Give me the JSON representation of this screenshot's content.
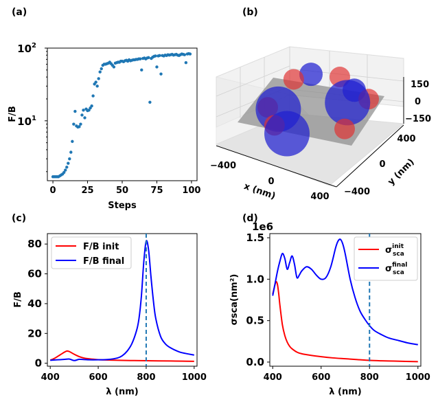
{
  "panels": {
    "a": "(a)",
    "b": "(b)",
    "c": "(c)",
    "d": "(d)"
  },
  "colors": {
    "scatter": "#1f77b4",
    "init": "#ff0000",
    "final": "#0000ff",
    "vline": "#1f77b4",
    "sphere_red": "#e03030",
    "sphere_blue": "#2020d0",
    "plane": "#8a8a8a"
  },
  "chart_data": [
    {
      "id": "a",
      "type": "scatter",
      "title": "",
      "xlabel": "Steps",
      "ylabel": "F/B",
      "yscale": "log",
      "xlim": [
        -4,
        104
      ],
      "ylim": [
        1.5,
        100
      ],
      "xticks": [
        0,
        25,
        50,
        75,
        100
      ],
      "xtick_labels": [
        "0",
        "25",
        "50",
        "75",
        "100"
      ],
      "yticks": [
        10,
        100
      ],
      "ytick_labels": [
        "10¹",
        "10²"
      ],
      "x": [
        0,
        1,
        2,
        3,
        4,
        5,
        6,
        7,
        8,
        9,
        10,
        11,
        12,
        13,
        14,
        15,
        16,
        17,
        18,
        19,
        20,
        21,
        22,
        23,
        24,
        25,
        26,
        27,
        28,
        29,
        30,
        31,
        32,
        33,
        34,
        35,
        36,
        37,
        38,
        39,
        40,
        41,
        42,
        43,
        44,
        45,
        46,
        47,
        48,
        49,
        50,
        51,
        52,
        53,
        54,
        55,
        56,
        57,
        58,
        59,
        60,
        61,
        62,
        63,
        64,
        65,
        66,
        67,
        68,
        69,
        70,
        71,
        72,
        73,
        74,
        75,
        76,
        77,
        78,
        79,
        80,
        81,
        82,
        83,
        84,
        85,
        86,
        87,
        88,
        89,
        90,
        91,
        92,
        93,
        94,
        95,
        96,
        97,
        98,
        99
      ],
      "y": [
        1.7,
        1.7,
        1.7,
        1.7,
        1.7,
        1.75,
        1.8,
        1.85,
        1.95,
        2.1,
        2.3,
        2.6,
        3.0,
        3.7,
        5.2,
        9.0,
        13.5,
        8.5,
        8.2,
        8.3,
        9.0,
        12.0,
        14.0,
        11.0,
        14.5,
        13.8,
        14.0,
        15.0,
        16.0,
        22.0,
        32.0,
        34.0,
        30.0,
        38.0,
        47.0,
        52.0,
        58.0,
        60.0,
        60.0,
        61.0,
        62.0,
        64.0,
        61.0,
        58.0,
        55.0,
        62.0,
        63.0,
        64.0,
        64.0,
        66.0,
        66.0,
        65.0,
        67.0,
        68.0,
        66.0,
        69.0,
        67.0,
        68.0,
        69.0,
        69.0,
        70.0,
        70.0,
        71.0,
        71.0,
        50.0,
        72.0,
        73.0,
        71.0,
        73.0,
        74.0,
        18.0,
        72.0,
        75.0,
        77.0,
        78.0,
        55.0,
        78.0,
        79.0,
        44.0,
        79.0,
        78.0,
        80.0,
        79.0,
        81.0,
        80.0,
        81.0,
        82.0,
        80.0,
        81.0,
        82.0,
        80.0,
        79.0,
        81.0,
        83.0,
        82.0,
        81.0,
        63.0,
        83.0,
        84.0,
        83.0
      ]
    },
    {
      "id": "b",
      "type": "scatter3d",
      "xlabel": "x (nm)",
      "ylabel": "y (nm)",
      "xtick_labels": [
        "−400",
        "0",
        "400"
      ],
      "ytick_labels": [
        "−400",
        "0",
        "400"
      ],
      "ztick_labels": [
        "150",
        "0",
        "−150"
      ],
      "spheres": [
        {
          "x": -430,
          "y": 250,
          "z": 40,
          "color": "red"
        },
        {
          "x": -330,
          "y": 330,
          "z": 70,
          "color": "blue"
        },
        {
          "x": -150,
          "y": 450,
          "z": 40,
          "color": "red"
        },
        {
          "x": 100,
          "y": 350,
          "z": 40,
          "color": "blue"
        },
        {
          "x": 300,
          "y": 300,
          "z": 40,
          "color": "red"
        },
        {
          "x": 200,
          "y": 180,
          "z": 40,
          "color": "blue"
        },
        {
          "x": -420,
          "y": -30,
          "z": -60,
          "color": "red"
        },
        {
          "x": -300,
          "y": -40,
          "z": -40,
          "color": "blue"
        },
        {
          "x": -80,
          "y": -300,
          "z": 0,
          "color": "red"
        },
        {
          "x": 100,
          "y": -350,
          "z": 0,
          "color": "blue"
        },
        {
          "x": 400,
          "y": -50,
          "z": -20,
          "color": "red"
        }
      ]
    },
    {
      "id": "c",
      "type": "line",
      "xlabel": "λ (nm)",
      "ylabel": "F/B",
      "xlim": [
        388,
        1012
      ],
      "ylim": [
        -2,
        87
      ],
      "xticks": [
        400,
        600,
        800,
        1000
      ],
      "yticks": [
        0,
        20,
        40,
        60,
        80
      ],
      "vline": 800,
      "legend_position": "upper-left",
      "series": [
        {
          "name": "F/B init",
          "key": "init",
          "x": [
            400,
            420,
            440,
            460,
            470,
            480,
            500,
            520,
            540,
            560,
            600,
            650,
            700,
            750,
            800,
            850,
            900,
            950,
            1000
          ],
          "values": [
            2.0,
            3.5,
            5.5,
            7.5,
            8.2,
            7.8,
            6.0,
            4.5,
            3.5,
            3.0,
            2.4,
            2.1,
            1.9,
            1.8,
            1.7,
            1.6,
            1.5,
            1.4,
            1.3
          ]
        },
        {
          "name": "F/B final",
          "key": "final",
          "x": [
            400,
            430,
            460,
            480,
            500,
            520,
            540,
            560,
            600,
            640,
            680,
            700,
            720,
            740,
            760,
            770,
            780,
            790,
            800,
            810,
            820,
            830,
            840,
            860,
            880,
            900,
            940,
            1000
          ],
          "values": [
            2.0,
            2.3,
            2.6,
            2.8,
            1.8,
            2.6,
            2.5,
            2.3,
            2.3,
            2.5,
            3.5,
            5.0,
            8.0,
            13.0,
            22.0,
            30.0,
            45.0,
            68.0,
            82.0,
            76.0,
            58.0,
            42.0,
            30.0,
            18.0,
            13.0,
            10.5,
            7.5,
            5.5
          ]
        }
      ]
    },
    {
      "id": "d",
      "type": "line",
      "xlabel": "λ (nm)",
      "ylabel": "σsca(nm²)",
      "offset_label": "1e6",
      "xlim": [
        388,
        1012
      ],
      "ylim": [
        -0.05,
        1.55
      ],
      "xticks": [
        400,
        600,
        800,
        1000
      ],
      "yticks": [
        0.0,
        0.5,
        1.0,
        1.5
      ],
      "ytick_labels": [
        "0.0",
        "0.5",
        "1.0",
        "1.5"
      ],
      "vline": 800,
      "legend_position": "upper-right",
      "series": [
        {
          "name": "σ sca init",
          "label_main": "σ",
          "label_sup": "init",
          "label_sub": "sca",
          "key": "init",
          "x": [
            400,
            405,
            410,
            415,
            420,
            425,
            430,
            440,
            450,
            460,
            470,
            480,
            500,
            520,
            550,
            600,
            650,
            700,
            750,
            800,
            850,
            900,
            950,
            1000
          ],
          "values": [
            0.82,
            0.88,
            0.94,
            0.97,
            0.93,
            0.82,
            0.68,
            0.45,
            0.32,
            0.24,
            0.19,
            0.16,
            0.12,
            0.1,
            0.085,
            0.065,
            0.05,
            0.04,
            0.03,
            0.02,
            0.015,
            0.012,
            0.008,
            0.005
          ]
        },
        {
          "name": "σ sca final",
          "label_main": "σ",
          "label_sup": "final",
          "label_sub": "sca",
          "key": "final",
          "x": [
            400,
            410,
            420,
            430,
            440,
            450,
            460,
            470,
            480,
            490,
            500,
            510,
            520,
            540,
            560,
            580,
            600,
            620,
            640,
            660,
            670,
            680,
            690,
            700,
            720,
            740,
            760,
            780,
            800,
            820,
            850,
            880,
            920,
            960,
            1000
          ],
          "values": [
            0.8,
            0.95,
            1.1,
            1.22,
            1.31,
            1.25,
            1.12,
            1.2,
            1.28,
            1.18,
            1.02,
            1.05,
            1.1,
            1.15,
            1.12,
            1.05,
            1.0,
            1.02,
            1.15,
            1.38,
            1.46,
            1.48,
            1.42,
            1.3,
            1.0,
            0.78,
            0.62,
            0.52,
            0.44,
            0.38,
            0.33,
            0.29,
            0.26,
            0.23,
            0.21
          ]
        }
      ]
    }
  ]
}
